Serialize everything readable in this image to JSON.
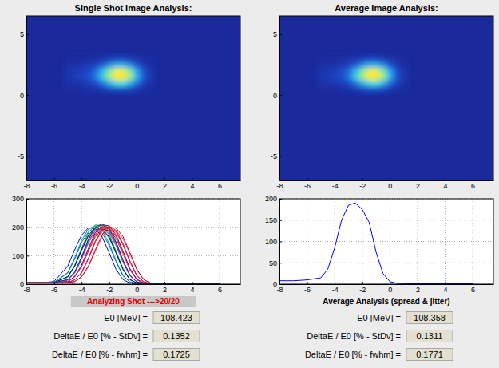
{
  "panels": [
    {
      "title": "Single Shot Image Analysis:",
      "status": "Analyzing Shot --->20/20",
      "fields": [
        {
          "label": "E0 [MeV] =",
          "value": "108.423"
        },
        {
          "label": "DeltaE / E0 [% - StDv] =",
          "value": "0.1352"
        },
        {
          "label": "DeltaE / E0 [% - fwhm] =",
          "value": "0.1725"
        }
      ]
    },
    {
      "title": "Average Image Analysis:",
      "caption": "Average Analysis (spread & jitter)",
      "fields": [
        {
          "label": "E0 [MeV] =",
          "value": "108.358"
        },
        {
          "label": "DeltaE / E0 [% - StDv] =",
          "value": "0.1311"
        },
        {
          "label": "DeltaE / E0 [% - fwhm] =",
          "value": "0.1771"
        }
      ]
    }
  ],
  "chart_data": [
    {
      "type": "heatmap",
      "x": [
        -5,
        -4.5,
        -4,
        -3.5,
        -3,
        -2.5,
        -2,
        -1.5,
        -1,
        -0.5,
        0,
        0.5,
        1
      ],
      "y": [
        0.5,
        1,
        1.5,
        2,
        2.5,
        3
      ],
      "z": [
        [
          0.01,
          0.01,
          0.01,
          0.02,
          0.03,
          0.06,
          0.1,
          0.13,
          0.13,
          0.1,
          0.06,
          0.02,
          0.01
        ],
        [
          0.03,
          0.04,
          0.05,
          0.08,
          0.13,
          0.23,
          0.37,
          0.48,
          0.5,
          0.38,
          0.21,
          0.09,
          0.03
        ],
        [
          0.05,
          0.07,
          0.1,
          0.14,
          0.24,
          0.43,
          0.68,
          0.9,
          0.93,
          0.7,
          0.39,
          0.16,
          0.05
        ],
        [
          0.04,
          0.06,
          0.09,
          0.13,
          0.22,
          0.4,
          0.63,
          0.84,
          0.86,
          0.65,
          0.36,
          0.15,
          0.04
        ],
        [
          0.02,
          0.03,
          0.04,
          0.06,
          0.1,
          0.18,
          0.3,
          0.39,
          0.4,
          0.3,
          0.17,
          0.07,
          0.02
        ],
        [
          0.01,
          0.01,
          0.01,
          0.02,
          0.03,
          0.05,
          0.07,
          0.1,
          0.1,
          0.07,
          0.04,
          0.02,
          0.01
        ]
      ],
      "zlim": [
        0,
        1
      ],
      "xlim": [
        -8,
        7.5
      ],
      "ylim": [
        -7,
        6.5
      ],
      "xticks": [
        -8,
        -6,
        -4,
        -2,
        0,
        2,
        4,
        6
      ],
      "yticks": [
        -5,
        0,
        5
      ],
      "grid": false
    },
    {
      "type": "heatmap",
      "x": [
        -5,
        -4.5,
        -4,
        -3.5,
        -3,
        -2.5,
        -2,
        -1.5,
        -1,
        -0.5,
        0,
        0.5,
        1
      ],
      "y": [
        0.5,
        1,
        1.5,
        2,
        2.5,
        3
      ],
      "z": [
        [
          0.01,
          0.01,
          0.01,
          0.02,
          0.03,
          0.06,
          0.1,
          0.13,
          0.13,
          0.1,
          0.06,
          0.02,
          0.01
        ],
        [
          0.03,
          0.04,
          0.05,
          0.08,
          0.13,
          0.23,
          0.37,
          0.48,
          0.5,
          0.38,
          0.21,
          0.09,
          0.03
        ],
        [
          0.05,
          0.07,
          0.1,
          0.14,
          0.24,
          0.43,
          0.68,
          0.9,
          0.93,
          0.7,
          0.39,
          0.16,
          0.05
        ],
        [
          0.04,
          0.06,
          0.09,
          0.13,
          0.22,
          0.4,
          0.63,
          0.84,
          0.86,
          0.65,
          0.36,
          0.15,
          0.04
        ],
        [
          0.02,
          0.03,
          0.04,
          0.06,
          0.1,
          0.18,
          0.3,
          0.39,
          0.4,
          0.3,
          0.17,
          0.07,
          0.02
        ],
        [
          0.01,
          0.01,
          0.01,
          0.02,
          0.03,
          0.05,
          0.07,
          0.1,
          0.1,
          0.07,
          0.04,
          0.02,
          0.01
        ]
      ],
      "zlim": [
        0,
        1
      ],
      "xlim": [
        -8,
        7.5
      ],
      "ylim": [
        -7,
        6.5
      ],
      "xticks": [
        -8,
        -6,
        -4,
        -2,
        0,
        2,
        4,
        6
      ],
      "yticks": [
        -5,
        0,
        5
      ],
      "grid": false
    },
    {
      "type": "line",
      "x": [
        -8,
        -7,
        -6,
        -5,
        -4.5,
        -4,
        -3.5,
        -3,
        -2.5,
        -2,
        -1.5,
        -1,
        -0.5,
        0,
        0.5,
        1,
        2,
        4,
        6
      ],
      "series": [
        {
          "color": "#0000ff",
          "values": [
            5,
            5,
            9,
            63,
            120,
            172,
            198,
            195,
            165,
            110,
            52,
            16,
            4,
            1,
            1,
            1,
            1,
            1,
            1
          ]
        },
        {
          "color": "#0080ff",
          "values": [
            5,
            5,
            6,
            41,
            92,
            153,
            194,
            204,
            189,
            143,
            82,
            31,
            8,
            2,
            1,
            1,
            1,
            1,
            1
          ]
        },
        {
          "color": "#008080",
          "values": [
            5,
            5,
            6,
            39,
            87,
            146,
            184,
            194,
            179,
            136,
            78,
            29,
            8,
            2,
            1,
            1,
            1,
            1,
            1
          ]
        },
        {
          "color": "#00a000",
          "values": [
            5,
            5,
            5,
            27,
            66,
            126,
            181,
            208,
            205,
            173,
            116,
            55,
            17,
            4,
            1,
            1,
            1,
            1,
            1
          ]
        },
        {
          "color": "#2e8b57",
          "values": [
            5,
            5,
            5,
            25,
            62,
            118,
            169,
            194,
            191,
            162,
            108,
            51,
            16,
            4,
            1,
            1,
            1,
            1,
            1
          ]
        },
        {
          "color": "#000080",
          "values": [
            5,
            5,
            5,
            26,
            63,
            120,
            172,
            198,
            195,
            165,
            110,
            52,
            16,
            4,
            1,
            1,
            1,
            1,
            1
          ]
        },
        {
          "color": "#4040c0",
          "values": [
            5,
            5,
            5,
            15,
            40,
            90,
            150,
            190,
            200,
            185,
            140,
            80,
            30,
            8,
            2,
            1,
            1,
            1,
            1
          ]
        },
        {
          "color": "#00bfbf",
          "values": [
            5,
            5,
            5,
            14,
            38,
            86,
            144,
            182,
            192,
            178,
            134,
            77,
            29,
            8,
            2,
            1,
            1,
            1,
            1
          ]
        },
        {
          "color": "#008000",
          "values": [
            5,
            5,
            5,
            16,
            42,
            94,
            156,
            198,
            208,
            192,
            146,
            83,
            31,
            8,
            2,
            1,
            1,
            1,
            1
          ]
        },
        {
          "color": "#ff00ff",
          "values": [
            5,
            5,
            5,
            15,
            40,
            89,
            149,
            188,
            198,
            183,
            139,
            79,
            30,
            8,
            2,
            1,
            1,
            1,
            1
          ]
        },
        {
          "color": "#ff0000",
          "values": [
            5,
            5,
            5,
            9,
            27,
            64,
            122,
            175,
            202,
            199,
            168,
            112,
            53,
            16,
            4,
            1,
            1,
            1,
            1
          ]
        },
        {
          "color": "#c00000",
          "values": [
            5,
            5,
            5,
            9,
            25,
            61,
            116,
            167,
            192,
            189,
            160,
            107,
            50,
            16,
            4,
            1,
            1,
            1,
            1
          ]
        },
        {
          "color": "#ff6060",
          "values": [
            5,
            5,
            5,
            9,
            26,
            63,
            120,
            172,
            198,
            195,
            165,
            110,
            52,
            16,
            4,
            1,
            1,
            1,
            1
          ]
        },
        {
          "color": "#800080",
          "values": [
            5,
            5,
            5,
            9,
            27,
            66,
            126,
            181,
            208,
            205,
            173,
            116,
            55,
            17,
            4,
            1,
            1,
            1,
            1
          ]
        },
        {
          "color": "#ff8000",
          "values": [
            5,
            5,
            5,
            6,
            15,
            39,
            88,
            147,
            186,
            196,
            181,
            137,
            78,
            29,
            8,
            2,
            1,
            1,
            1
          ]
        },
        {
          "color": "#c06000",
          "values": [
            5,
            5,
            5,
            6,
            15,
            41,
            92,
            153,
            194,
            204,
            189,
            143,
            82,
            31,
            8,
            2,
            1,
            1,
            1
          ]
        },
        {
          "color": "#bf00bf",
          "values": [
            5,
            5,
            5,
            6,
            15,
            40,
            90,
            150,
            190,
            200,
            185,
            140,
            80,
            30,
            8,
            2,
            1,
            1,
            1
          ]
        },
        {
          "color": "#ff4080",
          "values": [
            5,
            5,
            5,
            5,
            9,
            25,
            61,
            116,
            167,
            192,
            189,
            160,
            107,
            50,
            16,
            4,
            1,
            1,
            1
          ]
        },
        {
          "color": "#e00000",
          "values": [
            5,
            5,
            5,
            5,
            9,
            26,
            64,
            121,
            174,
            200,
            197,
            167,
            111,
            53,
            16,
            4,
            1,
            1,
            1
          ]
        },
        {
          "color": "#0040a0",
          "values": [
            5,
            5,
            5,
            16,
            42,
            95,
            159,
            201,
            212,
            196,
            148,
            85,
            32,
            8,
            2,
            1,
            1,
            1,
            1
          ]
        }
      ],
      "xlim": [
        -8,
        7.5
      ],
      "ylim": [
        0,
        300
      ],
      "xticks": [
        -8,
        -6,
        -4,
        -2,
        0,
        2,
        4,
        6
      ],
      "yticks": [
        0,
        100,
        200,
        300
      ],
      "grid": true
    },
    {
      "type": "line",
      "x": [
        -8,
        -7,
        -6,
        -5,
        -4.5,
        -4,
        -3.5,
        -3,
        -2.5,
        -2,
        -1.5,
        -1,
        -0.5,
        0,
        0.5,
        1,
        2,
        4,
        6
      ],
      "series": [
        {
          "color": "#0000ff",
          "values": [
            8,
            8,
            10,
            15,
            35,
            85,
            150,
            185,
            190,
            175,
            145,
            75,
            25,
            6,
            2,
            1,
            1,
            1,
            1
          ]
        }
      ],
      "xlim": [
        -8,
        7.5
      ],
      "ylim": [
        0,
        200
      ],
      "xticks": [
        -8,
        -6,
        -4,
        -2,
        0,
        2,
        4,
        6
      ],
      "yticks": [
        0,
        50,
        100,
        150,
        200
      ],
      "grid": true
    }
  ]
}
